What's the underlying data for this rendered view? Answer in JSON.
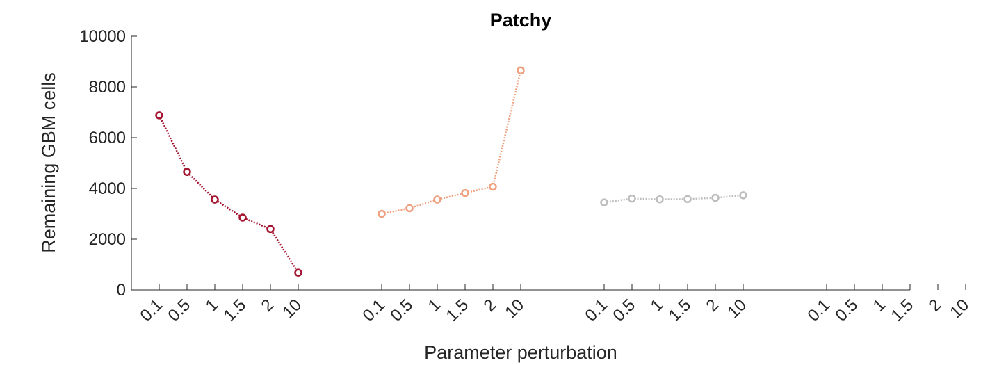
{
  "chart_data": {
    "type": "line",
    "title": "Patchy",
    "xlabel": "Parameter perturbation",
    "ylabel": "Remaining GBM cells",
    "ylim": [
      0,
      10000
    ],
    "yticks": [
      0,
      2000,
      4000,
      6000,
      8000,
      10000
    ],
    "grid": false,
    "legend": "none",
    "x_tick_labels": [
      "0.1",
      "0.5",
      "1",
      "1.5",
      "2",
      "10",
      "0.1",
      "0.5",
      "1",
      "1.5",
      "2",
      "10",
      "0.1",
      "0.5",
      "1",
      "1.5",
      "2",
      "10",
      "0.1",
      "0.5",
      "1",
      "1.5",
      "2",
      "10"
    ],
    "groups": 4,
    "series": [
      {
        "group": 0,
        "color": "#A2142F",
        "line_style": "dotted",
        "marker": "circle",
        "values": [
          6880,
          4650,
          3560,
          2850,
          2400,
          680
        ]
      },
      {
        "group": 1,
        "color": "#EFA07F",
        "line_style": "dotted",
        "marker": "circle",
        "values": [
          3000,
          3220,
          3560,
          3820,
          4070,
          8650
        ]
      },
      {
        "group": 2,
        "color": "#BDBDBD",
        "line_style": "dotted",
        "marker": "circle",
        "values": [
          3450,
          3600,
          3570,
          3580,
          3630,
          3730
        ]
      }
    ]
  }
}
